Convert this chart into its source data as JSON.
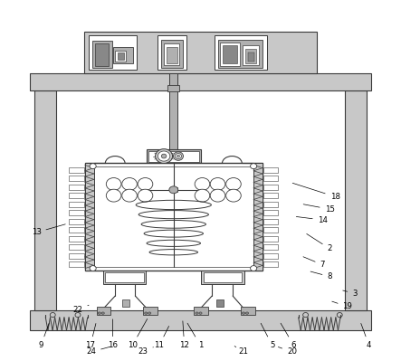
{
  "bg_color": "#ffffff",
  "line_color": "#3a3a3a",
  "fill_light": "#c8c8c8",
  "fill_mid": "#b0b0b0",
  "fill_dark": "#888888",
  "fig_width": 4.43,
  "fig_height": 3.99,
  "dpi": 100,
  "annotations": [
    [
      1,
      0.5,
      0.04,
      0.46,
      0.108
    ],
    [
      2,
      0.86,
      0.31,
      0.79,
      0.355
    ],
    [
      3,
      0.93,
      0.185,
      0.89,
      0.195
    ],
    [
      4,
      0.97,
      0.04,
      0.945,
      0.108
    ],
    [
      5,
      0.7,
      0.04,
      0.665,
      0.108
    ],
    [
      6,
      0.76,
      0.04,
      0.72,
      0.108
    ],
    [
      7,
      0.84,
      0.265,
      0.78,
      0.29
    ],
    [
      8,
      0.86,
      0.232,
      0.8,
      0.248
    ],
    [
      9,
      0.055,
      0.04,
      0.08,
      0.108
    ],
    [
      10,
      0.31,
      0.04,
      0.355,
      0.12
    ],
    [
      11,
      0.385,
      0.04,
      0.415,
      0.1
    ],
    [
      12,
      0.455,
      0.04,
      0.45,
      0.115
    ],
    [
      13,
      0.042,
      0.355,
      0.13,
      0.38
    ],
    [
      14,
      0.84,
      0.39,
      0.76,
      0.4
    ],
    [
      15,
      0.86,
      0.42,
      0.78,
      0.435
    ],
    [
      16,
      0.255,
      0.04,
      0.255,
      0.12
    ],
    [
      17,
      0.193,
      0.04,
      0.21,
      0.108
    ],
    [
      18,
      0.875,
      0.455,
      0.75,
      0.495
    ],
    [
      19,
      0.91,
      0.148,
      0.86,
      0.165
    ],
    [
      20,
      0.755,
      0.022,
      0.71,
      0.038
    ],
    [
      21,
      0.62,
      0.022,
      0.595,
      0.038
    ],
    [
      22,
      0.158,
      0.14,
      0.195,
      0.155
    ],
    [
      23,
      0.34,
      0.022,
      0.375,
      0.038
    ],
    [
      24,
      0.195,
      0.022,
      0.255,
      0.038
    ]
  ]
}
